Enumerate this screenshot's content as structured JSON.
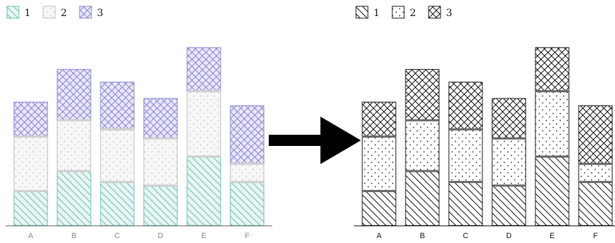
{
  "chart_data": [
    {
      "type": "bar",
      "stacked": true,
      "style": "colored-hatch",
      "categories": [
        "A",
        "B",
        "C",
        "D",
        "E",
        "F"
      ],
      "series": [
        {
          "name": "1",
          "values": [
            9.5,
            15.0,
            12.0,
            11.0,
            19.0,
            12.0
          ],
          "fill": "#e7f5f3",
          "stroke": "#6cbcb4",
          "hatch": "diagonal-down"
        },
        {
          "name": "2",
          "values": [
            15.0,
            14.0,
            14.5,
            13.0,
            18.0,
            5.0
          ],
          "fill": "#f7f7f7",
          "stroke": "#bdbdbd",
          "hatch": "dots"
        },
        {
          "name": "3",
          "values": [
            9.5,
            14.0,
            13.0,
            11.0,
            12.0,
            16.0
          ],
          "fill": "#e8e8f8",
          "stroke": "#8a84d6",
          "hatch": "crosshatch"
        }
      ],
      "xlabel": "",
      "ylabel": "",
      "ylim": [
        0,
        50
      ],
      "grid": false,
      "legend": "top-left"
    },
    {
      "type": "bar",
      "stacked": true,
      "style": "black-and-white-hatch",
      "categories": [
        "A",
        "B",
        "C",
        "D",
        "E",
        "F"
      ],
      "series": [
        {
          "name": "1",
          "values": [
            9.5,
            15.0,
            12.0,
            11.0,
            19.0,
            12.0
          ],
          "fill": "#ffffff",
          "stroke": "#111111",
          "hatch": "diagonal-down"
        },
        {
          "name": "2",
          "values": [
            15.0,
            14.0,
            14.5,
            13.0,
            18.0,
            5.0
          ],
          "fill": "#ffffff",
          "stroke": "#111111",
          "hatch": "dots"
        },
        {
          "name": "3",
          "values": [
            9.5,
            14.0,
            13.0,
            11.0,
            12.0,
            16.0
          ],
          "fill": "#ffffff",
          "stroke": "#111111",
          "hatch": "crosshatch"
        }
      ],
      "xlabel": "",
      "ylabel": "",
      "ylim": [
        0,
        50
      ],
      "grid": false,
      "legend": "top-left"
    }
  ],
  "connector": {
    "type": "arrow",
    "direction": "right",
    "color": "#000000"
  }
}
